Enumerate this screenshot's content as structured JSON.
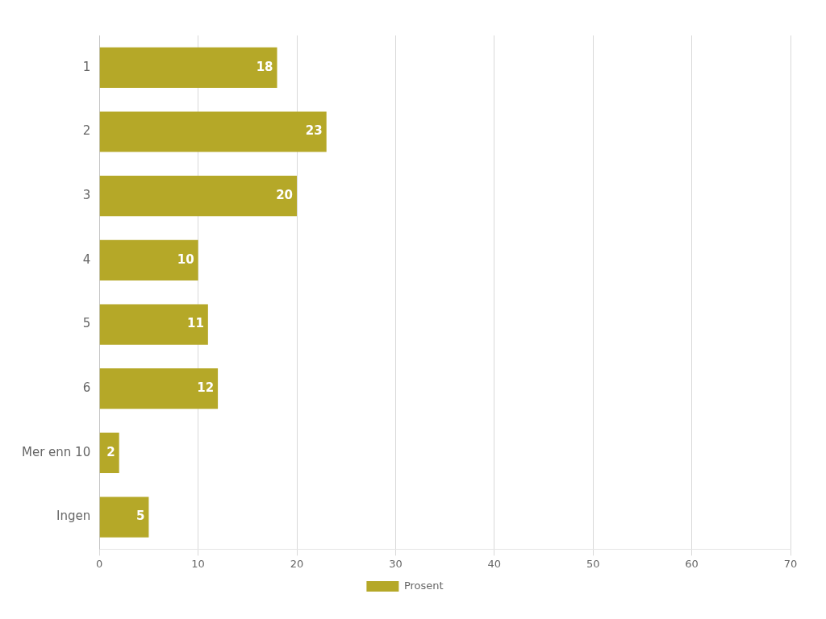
{
  "chart_data": {
    "type": "bar",
    "orientation": "horizontal",
    "categories": [
      "1",
      "2",
      "3",
      "4",
      "5",
      "6",
      "Mer enn 10",
      "Ingen"
    ],
    "series": [
      {
        "name": "Prosent",
        "color": "#b5a828",
        "values": [
          18,
          23,
          20,
          10,
          11,
          12,
          2,
          5
        ]
      }
    ],
    "xlim": [
      0,
      70
    ],
    "xticks": [
      0,
      10,
      20,
      30,
      40,
      50,
      60,
      70
    ],
    "grid": true,
    "legend": "bottom",
    "data_labels": true
  }
}
